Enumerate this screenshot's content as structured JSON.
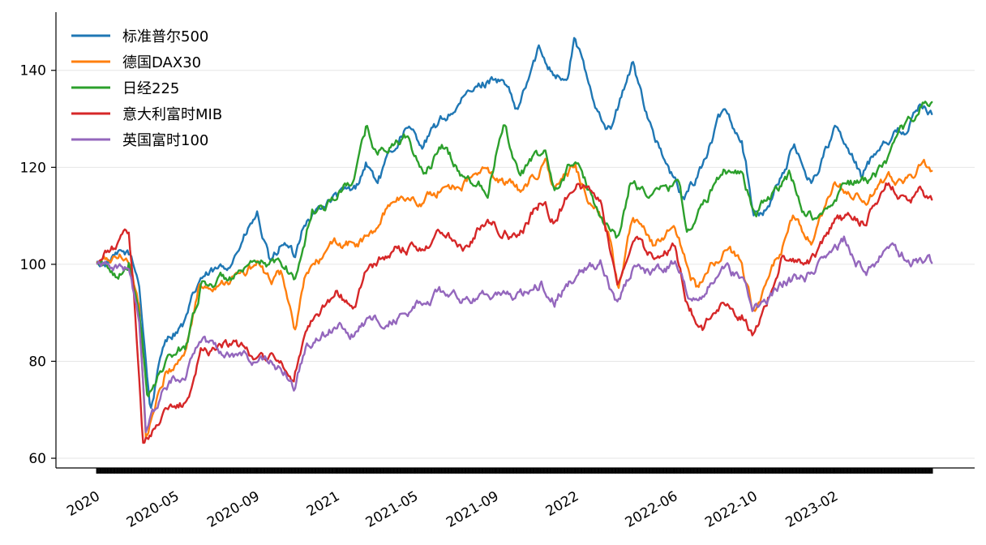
{
  "chart_data": {
    "type": "line",
    "title": "",
    "xlabel": "",
    "ylabel": "",
    "xlim": [
      "2020-01-02",
      "2023-06-30"
    ],
    "ylim": [
      58,
      152
    ],
    "yticks": [
      60,
      80,
      100,
      120,
      140
    ],
    "xticks": [
      {
        "date": "2020-01-01",
        "label": "2020"
      },
      {
        "date": "2020-05-01",
        "label": "2020-05"
      },
      {
        "date": "2020-09-01",
        "label": "2020-09"
      },
      {
        "date": "2021-01-01",
        "label": "2021"
      },
      {
        "date": "2021-05-01",
        "label": "2021-05"
      },
      {
        "date": "2021-09-01",
        "label": "2021-09"
      },
      {
        "date": "2022-01-01",
        "label": "2022"
      },
      {
        "date": "2022-06-01",
        "label": "2022-06"
      },
      {
        "date": "2022-10-01",
        "label": "2022-10"
      },
      {
        "date": "2023-02-01",
        "label": "2023-02"
      }
    ],
    "grid": "horizontal",
    "legend_position": "top-left",
    "series": [
      {
        "name": "标准普尔500",
        "color": "#1f77b4",
        "points": [
          [
            "2020-01-02",
            100
          ],
          [
            "2020-02-19",
            102
          ],
          [
            "2020-03-06",
            96
          ],
          [
            "2020-03-23",
            70
          ],
          [
            "2020-04-15",
            85
          ],
          [
            "2020-05-15",
            88
          ],
          [
            "2020-06-08",
            97
          ],
          [
            "2020-07-15",
            99
          ],
          [
            "2020-08-15",
            106
          ],
          [
            "2020-09-02",
            110
          ],
          [
            "2020-09-23",
            99
          ],
          [
            "2020-10-12",
            105
          ],
          [
            "2020-10-30",
            101
          ],
          [
            "2020-11-12",
            109
          ],
          [
            "2020-12-31",
            114
          ],
          [
            "2021-01-29",
            115
          ],
          [
            "2021-02-15",
            121
          ],
          [
            "2021-03-04",
            117
          ],
          [
            "2021-04-15",
            128
          ],
          [
            "2021-05-12",
            125
          ],
          [
            "2021-06-15",
            130
          ],
          [
            "2021-07-15",
            134
          ],
          [
            "2021-08-31",
            139
          ],
          [
            "2021-09-15",
            137
          ],
          [
            "2021-10-04",
            131
          ],
          [
            "2021-11-05",
            144
          ],
          [
            "2021-11-30",
            140
          ],
          [
            "2021-12-20",
            138
          ],
          [
            "2021-12-31",
            147
          ],
          [
            "2022-01-27",
            134
          ],
          [
            "2022-02-24",
            128
          ],
          [
            "2022-03-29",
            141
          ],
          [
            "2022-04-29",
            128
          ],
          [
            "2022-05-20",
            120
          ],
          [
            "2022-06-16",
            113
          ],
          [
            "2022-07-15",
            121
          ],
          [
            "2022-08-16",
            132
          ],
          [
            "2022-09-12",
            126
          ],
          [
            "2022-09-30",
            111
          ],
          [
            "2022-10-14",
            110
          ],
          [
            "2022-11-30",
            124
          ],
          [
            "2022-12-28",
            117
          ],
          [
            "2023-02-02",
            128
          ],
          [
            "2023-03-13",
            118
          ],
          [
            "2023-04-15",
            126
          ],
          [
            "2023-05-20",
            128
          ],
          [
            "2023-06-15",
            133
          ],
          [
            "2023-06-30",
            131
          ]
        ]
      },
      {
        "name": "德国DAX30",
        "color": "#ff7f0e",
        "points": [
          [
            "2020-01-02",
            100
          ],
          [
            "2020-02-17",
            102
          ],
          [
            "2020-03-06",
            92
          ],
          [
            "2020-03-16",
            65
          ],
          [
            "2020-04-15",
            77
          ],
          [
            "2020-05-15",
            82
          ],
          [
            "2020-06-05",
            95
          ],
          [
            "2020-07-15",
            97
          ],
          [
            "2020-08-15",
            98
          ],
          [
            "2020-09-02",
            100
          ],
          [
            "2020-09-23",
            96
          ],
          [
            "2020-10-10",
            98
          ],
          [
            "2020-10-30",
            86
          ],
          [
            "2020-11-16",
            98
          ],
          [
            "2020-12-31",
            104
          ],
          [
            "2021-01-29",
            104
          ],
          [
            "2021-02-26",
            106
          ],
          [
            "2021-03-31",
            114
          ],
          [
            "2021-05-12",
            113
          ],
          [
            "2021-06-15",
            116
          ],
          [
            "2021-07-15",
            117
          ],
          [
            "2021-08-13",
            119
          ],
          [
            "2021-09-15",
            117
          ],
          [
            "2021-10-06",
            115
          ],
          [
            "2021-11-17",
            121
          ],
          [
            "2021-11-30",
            115
          ],
          [
            "2021-12-31",
            120
          ],
          [
            "2022-01-24",
            113
          ],
          [
            "2022-02-24",
            105
          ],
          [
            "2022-03-07",
            96
          ],
          [
            "2022-03-29",
            109
          ],
          [
            "2022-04-29",
            104
          ],
          [
            "2022-06-01",
            108
          ],
          [
            "2022-06-24",
            98
          ],
          [
            "2022-07-05",
            95
          ],
          [
            "2022-08-16",
            103
          ],
          [
            "2022-09-12",
            100
          ],
          [
            "2022-09-29",
            91
          ],
          [
            "2022-10-15",
            94
          ],
          [
            "2022-11-30",
            109
          ],
          [
            "2022-12-28",
            104
          ],
          [
            "2023-02-02",
            116
          ],
          [
            "2023-03-20",
            113
          ],
          [
            "2023-04-20",
            117
          ],
          [
            "2023-05-20",
            118
          ],
          [
            "2023-06-15",
            120
          ],
          [
            "2023-06-30",
            119
          ]
        ]
      },
      {
        "name": "日经225",
        "color": "#2ca02c",
        "points": [
          [
            "2020-01-02",
            100
          ],
          [
            "2020-01-30",
            98
          ],
          [
            "2020-02-20",
            101
          ],
          [
            "2020-03-10",
            85
          ],
          [
            "2020-03-19",
            72
          ],
          [
            "2020-04-15",
            80
          ],
          [
            "2020-05-15",
            83
          ],
          [
            "2020-06-09",
            96
          ],
          [
            "2020-07-15",
            97
          ],
          [
            "2020-08-15",
            98
          ],
          [
            "2020-09-15",
            100
          ],
          [
            "2020-10-15",
            100
          ],
          [
            "2020-10-30",
            97
          ],
          [
            "2020-11-25",
            111
          ],
          [
            "2020-12-31",
            114
          ],
          [
            "2021-01-29",
            118
          ],
          [
            "2021-02-16",
            128
          ],
          [
            "2021-03-05",
            123
          ],
          [
            "2021-04-15",
            126
          ],
          [
            "2021-05-13",
            119
          ],
          [
            "2021-06-15',",
            124
          ],
          [
            "2021-07-15",
            118
          ],
          [
            "2021-08-20",
            116
          ],
          [
            "2021-09-14",
            130
          ],
          [
            "2021-10-06",
            119
          ],
          [
            "2021-11-15",
            123
          ],
          [
            "2021-12-01",
            115
          ],
          [
            "2021-12-31",
            122
          ],
          [
            "2022-01-27",
            113
          ],
          [
            "2022-03-09",
            105
          ],
          [
            "2022-03-25",
            117
          ],
          [
            "2022-04-29",
            114
          ],
          [
            "2022-06-09",
            117
          ],
          [
            "2022-06-20",
            107
          ],
          [
            "2022-07-15",
            112
          ],
          [
            "2022-08-17",
            120
          ],
          [
            "2022-09-12",
            119
          ],
          [
            "2022-10-03",
            110
          ],
          [
            "2022-10-20",
            113
          ],
          [
            "2022-11-25",
            118
          ],
          [
            "2022-12-20",
            110
          ],
          [
            "2023-01-15",
            110
          ],
          [
            "2023-02-15",
            117
          ],
          [
            "2023-03-20",
            117
          ],
          [
            "2023-04-20",
            120
          ],
          [
            "2023-05-20",
            128
          ],
          [
            "2023-06-19",
            134
          ],
          [
            "2023-06-30",
            133
          ]
        ]
      },
      {
        "name": "意大利富时MIB",
        "color": "#d62728",
        "points": [
          [
            "2020-01-02",
            100
          ],
          [
            "2020-02-19",
            106
          ],
          [
            "2020-02-28",
            92
          ],
          [
            "2020-03-12",
            63
          ],
          [
            "2020-04-15",
            70
          ],
          [
            "2020-05-15",
            71
          ],
          [
            "2020-06-08",
            82
          ],
          [
            "2020-07-15",
            84
          ],
          [
            "2020-08-15",
            82
          ],
          [
            "2020-09-15",
            81
          ],
          [
            "2020-10-15",
            79
          ],
          [
            "2020-10-28",
            76
          ],
          [
            "2020-11-16",
            88
          ],
          [
            "2020-12-31",
            94
          ],
          [
            "2021-01-29",
            91
          ],
          [
            "2021-02-15",
            98
          ],
          [
            "2021-03-31",
            103
          ],
          [
            "2021-05-12",
            104
          ],
          [
            "2021-06-15",
            107
          ],
          [
            "2021-07-19",
            104
          ],
          [
            "2021-08-13",
            109
          ],
          [
            "2021-09-15",
            107
          ],
          [
            "2021-10-06",
            105
          ],
          [
            "2021-11-10",
            113
          ],
          [
            "2021-11-30",
            109
          ],
          [
            "2021-12-31',",
            117
          ],
          [
            "2022-01-15",
            116
          ],
          [
            "2022-02-09",
            113
          ],
          [
            "2022-03-07",
            96
          ],
          [
            "2022-03-29",
            106
          ],
          [
            "2022-04-29",
            101
          ],
          [
            "2022-06-01",
            104
          ],
          [
            "2022-06-24",
            90
          ],
          [
            "2022-07-15",
            87
          ],
          [
            "2022-08-16",
            92
          ],
          [
            "2022-09-12",
            90
          ],
          [
            "2022-09-29",
            86
          ],
          [
            "2022-10-20",
            92
          ],
          [
            "2022-11-15",
            102
          ],
          [
            "2022-12-28",
            101
          ],
          [
            "2023-02-02",
            109
          ],
          [
            "2023-03-20",
            109
          ],
          [
            "2023-04-21",
            117
          ],
          [
            "2023-05-26",
            113
          ],
          [
            "2023-06-15",
            115
          ],
          [
            "2023-06-30",
            113
          ]
        ]
      },
      {
        "name": "英国富时100",
        "color": "#9467bd",
        "points": [
          [
            "2020-01-02",
            100
          ],
          [
            "2020-01-17",
            101
          ],
          [
            "2020-02-20",
            99
          ],
          [
            "2020-03-06",
            88
          ],
          [
            "2020-03-16",
            66
          ],
          [
            "2020-04-15",
            75
          ],
          [
            "2020-05-15",
            78
          ],
          [
            "2020-06-08",
            85
          ],
          [
            "2020-07-15",
            82
          ],
          [
            "2020-08-15",
            81
          ],
          [
            "2020-09-15",
            80
          ],
          [
            "2020-10-15",
            78
          ],
          [
            "2020-10-28",
            74
          ],
          [
            "2020-11-16',",
            83
          ],
          [
            "2020-12-31",
            87
          ],
          [
            "2021-01-29",
            86
          ],
          [
            "2021-02-15",
            88
          ],
          [
            "2021-03-31",
            89
          ],
          [
            "2021-05-12",
            92
          ],
          [
            "2021-06-15",
            94
          ],
          [
            "2021-07-19",
            92
          ],
          [
            "2021-08-13",
            95
          ],
          [
            "2021-09-15",
            93
          ],
          [
            "2021-10-06",
            93
          ],
          [
            "2021-11-10",
            96
          ],
          [
            "2021-11-30",
            93
          ],
          [
            "2021-12-31',",
            98
          ],
          [
            "2022-01-17",
            99
          ],
          [
            "2022-02-09",
            101
          ],
          [
            "2022-03-07",
            92
          ],
          [
            "2022-03-29",
            99
          ],
          [
            "2022-04-29",
            98
          ],
          [
            "2022-06-01",
            100
          ],
          [
            "2022-06-24",
            93
          ],
          [
            "2022-07-15",
            95
          ],
          [
            "2022-08-16",
            99
          ],
          [
            "2022-09-12",
            97
          ],
          [
            "2022-09-29",
            91
          ],
          [
            "2022-10-20",
            92
          ],
          [
            "2022-11-15',",
            96
          ],
          [
            "2022-12-28",
            98
          ],
          [
            "2023-02-15",
            105
          ],
          [
            "2023-03-20",
            98
          ],
          [
            "2023-04-21",
            103
          ],
          [
            "2023-05-26",
            101
          ],
          [
            "2023-06-15",
            101
          ],
          [
            "2023-06-30",
            100
          ]
        ]
      }
    ]
  }
}
